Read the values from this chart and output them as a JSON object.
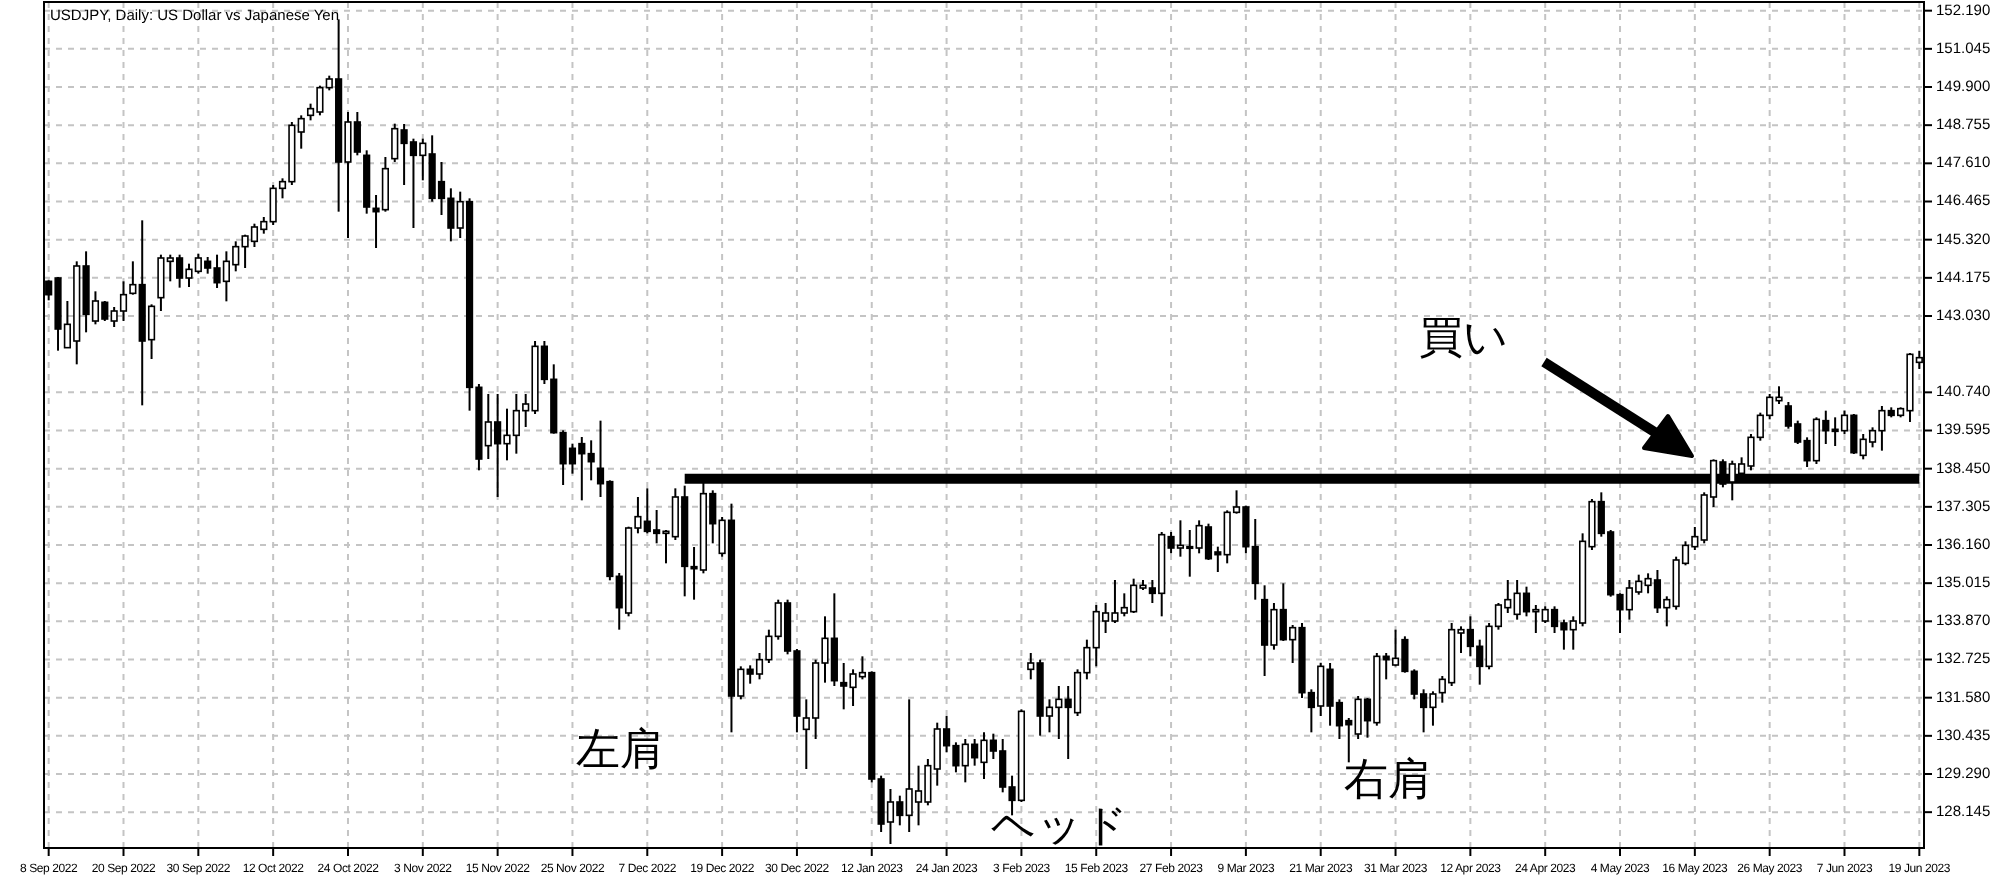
{
  "chart_data": {
    "type": "candlestick",
    "title": "USDJPY, Daily:  US Dollar vs Japanese Yen",
    "categories": [
      "8 Sep 2022",
      null,
      null,
      null,
      null,
      null,
      null,
      null,
      "20 Sep 2022",
      null,
      null,
      null,
      null,
      null,
      null,
      null,
      "30 Sep 2022",
      null,
      null,
      null,
      null,
      null,
      null,
      null,
      "12 Oct 2022",
      null,
      null,
      null,
      null,
      null,
      null,
      null,
      "24 Oct 2022",
      null,
      null,
      null,
      null,
      null,
      null,
      null,
      "3 Nov 2022",
      null,
      null,
      null,
      null,
      null,
      null,
      null,
      "15 Nov 2022",
      null,
      null,
      null,
      null,
      null,
      null,
      null,
      "25 Nov 2022",
      null,
      null,
      null,
      null,
      null,
      null,
      null,
      "7 Dec 2022",
      null,
      null,
      null,
      null,
      null,
      null,
      null,
      "19 Dec 2022",
      null,
      null,
      null,
      null,
      null,
      null,
      null,
      "30 Dec 2022",
      null,
      null,
      null,
      null,
      null,
      null,
      null,
      "12 Jan 2023",
      null,
      null,
      null,
      null,
      null,
      null,
      null,
      "24 Jan 2023",
      null,
      null,
      null,
      null,
      null,
      null,
      null,
      "3 Feb 2023",
      null,
      null,
      null,
      null,
      null,
      null,
      null,
      "15 Feb 2023",
      null,
      null,
      null,
      null,
      null,
      null,
      null,
      "27 Feb 2023",
      null,
      null,
      null,
      null,
      null,
      null,
      null,
      "9 Mar 2023",
      null,
      null,
      null,
      null,
      null,
      null,
      null,
      "21 Mar 2023",
      null,
      null,
      null,
      null,
      null,
      null,
      null,
      "31 Mar 2023",
      null,
      null,
      null,
      null,
      null,
      null,
      null,
      "12 Apr 2023",
      null,
      null,
      null,
      null,
      null,
      null,
      null,
      "24 Apr 2023",
      null,
      null,
      null,
      null,
      null,
      null,
      null,
      "4 May 2023",
      null,
      null,
      null,
      null,
      null,
      null,
      null,
      "16 May 2023",
      null,
      null,
      null,
      null,
      null,
      null,
      null,
      "26 May 2023",
      null,
      null,
      null,
      null,
      null,
      null,
      null,
      "7 Jun 2023",
      null,
      null,
      null,
      null,
      null,
      null,
      null,
      "19 Jun 2023"
    ],
    "ohlc": [
      [
        144.07,
        144.1,
        143.5,
        143.67
      ],
      [
        144.17,
        144.2,
        141.99,
        142.64
      ],
      [
        142.08,
        143.48,
        142.08,
        142.78
      ],
      [
        142.28,
        144.67,
        141.58,
        144.53
      ],
      [
        144.53,
        144.97,
        142.54,
        143.08
      ],
      [
        142.88,
        143.77,
        142.78,
        143.48
      ],
      [
        143.44,
        143.48,
        142.88,
        142.94
      ],
      [
        142.88,
        143.3,
        142.7,
        143.18
      ],
      [
        143.18,
        144.07,
        142.88,
        143.67
      ],
      [
        143.71,
        144.67,
        143.67,
        143.97
      ],
      [
        143.97,
        145.9,
        140.35,
        142.28
      ],
      [
        142.32,
        143.38,
        141.74,
        143.32
      ],
      [
        143.58,
        144.87,
        143.18,
        144.77
      ],
      [
        144.67,
        144.87,
        144.07,
        144.77
      ],
      [
        144.77,
        144.87,
        143.88,
        144.17
      ],
      [
        144.17,
        144.6,
        143.9,
        144.43
      ],
      [
        144.37,
        144.9,
        144.3,
        144.77
      ],
      [
        144.67,
        144.8,
        144.3,
        144.47
      ],
      [
        144.47,
        144.87,
        143.87,
        144.03
      ],
      [
        144.07,
        144.97,
        143.47,
        144.67
      ],
      [
        144.57,
        145.27,
        144.37,
        145.11
      ],
      [
        145.11,
        145.47,
        144.47,
        145.43
      ],
      [
        145.27,
        145.8,
        145.1,
        145.7
      ],
      [
        145.63,
        146.0,
        145.5,
        145.86
      ],
      [
        145.86,
        146.96,
        145.76,
        146.86
      ],
      [
        146.86,
        147.16,
        146.56,
        147.06
      ],
      [
        147.06,
        148.85,
        146.96,
        148.75
      ],
      [
        148.55,
        149.05,
        148.05,
        148.95
      ],
      [
        149.05,
        149.4,
        148.9,
        149.25
      ],
      [
        149.15,
        149.94,
        149.05,
        149.88
      ],
      [
        149.88,
        150.24,
        149.8,
        150.14
      ],
      [
        150.14,
        151.93,
        146.16,
        147.65
      ],
      [
        147.65,
        149.15,
        145.37,
        148.85
      ],
      [
        148.85,
        149.15,
        147.85,
        147.95
      ],
      [
        147.85,
        148.0,
        146.1,
        146.3
      ],
      [
        146.26,
        146.66,
        145.07,
        146.16
      ],
      [
        146.22,
        147.8,
        146.16,
        147.45
      ],
      [
        147.75,
        148.8,
        147.65,
        148.65
      ],
      [
        148.61,
        148.79,
        146.96,
        148.21
      ],
      [
        148.25,
        148.35,
        145.67,
        147.85
      ],
      [
        147.85,
        148.35,
        147.1,
        148.21
      ],
      [
        147.89,
        148.45,
        146.46,
        146.56
      ],
      [
        147.06,
        147.65,
        146.06,
        146.56
      ],
      [
        146.56,
        146.86,
        145.27,
        145.67
      ],
      [
        145.67,
        146.76,
        145.37,
        146.46
      ],
      [
        146.46,
        146.56,
        140.19,
        140.89
      ],
      [
        140.89,
        140.99,
        138.4,
        138.74
      ],
      [
        139.14,
        140.69,
        138.74,
        139.85
      ],
      [
        139.85,
        140.69,
        137.6,
        139.2
      ],
      [
        139.2,
        140.25,
        138.7,
        139.45
      ],
      [
        139.45,
        140.69,
        138.9,
        140.19
      ],
      [
        140.19,
        140.69,
        139.7,
        140.39
      ],
      [
        140.19,
        142.28,
        140.09,
        142.12
      ],
      [
        142.12,
        142.28,
        140.99,
        141.13
      ],
      [
        141.13,
        141.58,
        139.5,
        139.53
      ],
      [
        139.53,
        139.6,
        137.96,
        138.6
      ],
      [
        139.06,
        139.2,
        138.3,
        138.6
      ],
      [
        139.2,
        139.4,
        137.5,
        138.9
      ],
      [
        138.9,
        139.3,
        138.1,
        138.66
      ],
      [
        138.46,
        139.89,
        137.6,
        138.0
      ],
      [
        138.06,
        138.1,
        135.1,
        135.22
      ],
      [
        135.22,
        135.32,
        133.62,
        134.28
      ],
      [
        134.12,
        136.71,
        134.02,
        136.67
      ],
      [
        136.67,
        137.6,
        136.51,
        137.01
      ],
      [
        136.87,
        137.86,
        136.51,
        136.57
      ],
      [
        136.61,
        137.21,
        136.21,
        136.51
      ],
      [
        136.51,
        136.61,
        135.61,
        136.57
      ],
      [
        136.41,
        137.86,
        136.31,
        137.6
      ],
      [
        137.6,
        137.94,
        134.62,
        135.52
      ],
      [
        135.51,
        136.1,
        134.52,
        135.45
      ],
      [
        135.41,
        138.1,
        135.31,
        137.7
      ],
      [
        137.7,
        137.8,
        136.21,
        136.8
      ],
      [
        135.91,
        137.0,
        135.81,
        136.9
      ],
      [
        136.9,
        137.4,
        130.54,
        131.63
      ],
      [
        131.63,
        132.52,
        131.53,
        132.43
      ],
      [
        132.43,
        132.55,
        132.0,
        132.29
      ],
      [
        132.29,
        132.92,
        132.13,
        132.72
      ],
      [
        132.72,
        133.62,
        132.62,
        133.42
      ],
      [
        133.42,
        134.52,
        133.32,
        134.42
      ],
      [
        134.42,
        134.52,
        132.88,
        132.98
      ],
      [
        132.98,
        133.04,
        130.54,
        131.03
      ],
      [
        130.63,
        131.53,
        129.44,
        130.97
      ],
      [
        130.97,
        132.72,
        130.34,
        132.62
      ],
      [
        132.62,
        134.02,
        132.03,
        133.36
      ],
      [
        133.36,
        134.71,
        131.93,
        132.09
      ],
      [
        132.03,
        132.62,
        131.23,
        131.93
      ],
      [
        131.89,
        132.43,
        131.33,
        132.29
      ],
      [
        132.21,
        132.82,
        132.13,
        132.33
      ],
      [
        132.33,
        132.37,
        129.04,
        129.14
      ],
      [
        129.14,
        129.24,
        127.55,
        127.79
      ],
      [
        127.85,
        128.84,
        127.19,
        128.45
      ],
      [
        128.45,
        128.64,
        127.75,
        128.05
      ],
      [
        128.05,
        131.53,
        127.55,
        128.84
      ],
      [
        128.45,
        129.54,
        127.75,
        128.78
      ],
      [
        128.45,
        129.74,
        128.35,
        129.54
      ],
      [
        129.44,
        130.83,
        128.94,
        130.64
      ],
      [
        130.64,
        131.03,
        129.94,
        130.14
      ],
      [
        130.14,
        130.24,
        129.34,
        129.54
      ],
      [
        129.54,
        130.34,
        129.04,
        130.18
      ],
      [
        130.18,
        130.34,
        129.54,
        129.78
      ],
      [
        129.64,
        130.54,
        129.14,
        130.3
      ],
      [
        130.3,
        130.5,
        129.74,
        129.98
      ],
      [
        129.98,
        130.34,
        128.74,
        128.9
      ],
      [
        128.9,
        129.24,
        128.05,
        128.5
      ],
      [
        128.5,
        131.23,
        128.45,
        131.17
      ],
      [
        132.43,
        132.92,
        132.13,
        132.62
      ],
      [
        132.62,
        132.72,
        130.44,
        131.03
      ],
      [
        131.03,
        131.53,
        130.54,
        131.29
      ],
      [
        131.29,
        131.93,
        130.34,
        131.53
      ],
      [
        131.53,
        131.93,
        129.74,
        131.29
      ],
      [
        131.13,
        132.43,
        131.03,
        132.33
      ],
      [
        132.33,
        133.32,
        132.13,
        133.08
      ],
      [
        133.08,
        134.36,
        132.52,
        134.16
      ],
      [
        133.88,
        134.42,
        133.52,
        134.12
      ],
      [
        133.88,
        135.11,
        133.82,
        134.12
      ],
      [
        134.12,
        134.71,
        134.02,
        134.28
      ],
      [
        134.16,
        135.15,
        134.12,
        134.95
      ],
      [
        134.87,
        135.11,
        134.81,
        134.95
      ],
      [
        134.87,
        135.11,
        134.42,
        134.71
      ],
      [
        134.71,
        136.55,
        134.02,
        136.47
      ],
      [
        136.41,
        136.55,
        135.91,
        136.07
      ],
      [
        136.07,
        136.9,
        135.81,
        136.15
      ],
      [
        136.07,
        136.61,
        135.21,
        136.11
      ],
      [
        136.07,
        136.9,
        135.91,
        136.74
      ],
      [
        136.7,
        136.8,
        135.71,
        135.75
      ],
      [
        135.95,
        136.11,
        135.35,
        135.87
      ],
      [
        135.87,
        137.2,
        135.61,
        137.14
      ],
      [
        137.14,
        137.8,
        137.1,
        137.3
      ],
      [
        137.3,
        137.34,
        135.91,
        136.11
      ],
      [
        136.11,
        136.94,
        134.52,
        135.01
      ],
      [
        134.52,
        134.95,
        132.23,
        133.16
      ],
      [
        133.16,
        134.42,
        133.02,
        134.22
      ],
      [
        134.22,
        135.01,
        133.28,
        133.32
      ],
      [
        133.32,
        133.76,
        132.62,
        133.68
      ],
      [
        133.68,
        133.82,
        131.57,
        131.73
      ],
      [
        131.73,
        131.83,
        130.54,
        131.29
      ],
      [
        131.33,
        132.62,
        131.03,
        132.52
      ],
      [
        132.43,
        132.62,
        130.74,
        131.33
      ],
      [
        131.43,
        131.53,
        130.34,
        130.74
      ],
      [
        130.89,
        130.97,
        129.64,
        130.77
      ],
      [
        130.49,
        131.63,
        130.34,
        131.53
      ],
      [
        131.53,
        131.57,
        130.38,
        130.89
      ],
      [
        130.83,
        132.92,
        130.74,
        132.82
      ],
      [
        132.82,
        132.92,
        132.13,
        132.72
      ],
      [
        132.56,
        133.62,
        132.52,
        132.76
      ],
      [
        133.32,
        133.42,
        132.33,
        132.37
      ],
      [
        132.37,
        132.43,
        131.53,
        131.69
      ],
      [
        131.69,
        131.83,
        130.54,
        131.29
      ],
      [
        131.29,
        131.77,
        130.74,
        131.69
      ],
      [
        131.73,
        132.23,
        131.43,
        132.13
      ],
      [
        132.03,
        133.82,
        131.93,
        133.62
      ],
      [
        133.52,
        133.72,
        132.92,
        133.62
      ],
      [
        133.62,
        134.02,
        132.82,
        133.12
      ],
      [
        133.12,
        133.32,
        131.97,
        132.52
      ],
      [
        132.52,
        133.82,
        132.43,
        133.72
      ],
      [
        133.72,
        134.42,
        133.62,
        134.36
      ],
      [
        134.28,
        135.11,
        134.12,
        134.52
      ],
      [
        134.08,
        135.11,
        133.92,
        134.71
      ],
      [
        134.71,
        134.91,
        134.02,
        134.16
      ],
      [
        134.16,
        134.36,
        133.52,
        134.22
      ],
      [
        133.88,
        134.32,
        133.82,
        134.22
      ],
      [
        134.22,
        134.32,
        133.52,
        133.72
      ],
      [
        133.82,
        133.92,
        133.02,
        133.62
      ],
      [
        133.62,
        134.02,
        133.02,
        133.88
      ],
      [
        133.82,
        136.51,
        133.72,
        136.27
      ],
      [
        136.11,
        137.54,
        136.01,
        137.46
      ],
      [
        137.46,
        137.74,
        136.41,
        136.51
      ],
      [
        136.55,
        136.61,
        134.61,
        134.67
      ],
      [
        134.67,
        134.71,
        133.52,
        134.22
      ],
      [
        134.22,
        135.11,
        133.92,
        134.87
      ],
      [
        134.75,
        135.27,
        134.67,
        135.07
      ],
      [
        134.95,
        135.31,
        134.71,
        135.15
      ],
      [
        135.11,
        135.41,
        134.12,
        134.28
      ],
      [
        134.28,
        134.62,
        133.72,
        134.52
      ],
      [
        134.32,
        135.81,
        134.22,
        135.71
      ],
      [
        135.61,
        136.27,
        135.55,
        136.15
      ],
      [
        136.11,
        136.7,
        136.01,
        136.41
      ],
      [
        136.31,
        137.74,
        136.21,
        137.66
      ],
      [
        137.6,
        138.73,
        137.3,
        138.69
      ],
      [
        138.65,
        138.73,
        137.89,
        137.99
      ],
      [
        138.05,
        138.69,
        137.5,
        138.59
      ],
      [
        138.31,
        138.79,
        138.13,
        138.59
      ],
      [
        138.53,
        139.49,
        138.4,
        139.39
      ],
      [
        139.39,
        140.13,
        139.29,
        140.05
      ],
      [
        140.05,
        140.69,
        139.93,
        140.59
      ],
      [
        140.49,
        140.92,
        140.39,
        140.59
      ],
      [
        140.33,
        140.45,
        139.65,
        139.73
      ],
      [
        139.79,
        139.89,
        139.19,
        139.25
      ],
      [
        139.29,
        139.39,
        138.5,
        138.69
      ],
      [
        138.69,
        139.99,
        138.59,
        139.93
      ],
      [
        139.89,
        140.19,
        139.19,
        139.59
      ],
      [
        139.63,
        139.99,
        139.13,
        139.57
      ],
      [
        139.59,
        140.19,
        139.49,
        140.05
      ],
      [
        140.05,
        140.09,
        138.89,
        138.93
      ],
      [
        138.85,
        139.49,
        138.73,
        139.33
      ],
      [
        139.25,
        139.69,
        139.09,
        139.59
      ],
      [
        139.59,
        140.33,
        138.99,
        140.19
      ],
      [
        140.19,
        140.29,
        139.99,
        140.05
      ],
      [
        140.05,
        140.29,
        139.99,
        140.25
      ],
      [
        140.19,
        141.92,
        139.85,
        141.88
      ],
      [
        141.64,
        141.98,
        141.44,
        141.78
      ]
    ],
    "series": [
      {
        "type": "line",
        "color": "#000000",
        "values": [
          null,
          null,
          null,
          null,
          null,
          null,
          null,
          null,
          null,
          null,
          null,
          null,
          null,
          null,
          null,
          null,
          null,
          null,
          null,
          null,
          null,
          null,
          null,
          null,
          null,
          null,
          null,
          null,
          null,
          null,
          null,
          null,
          null,
          null,
          null,
          null,
          null,
          null,
          null,
          null,
          null,
          null,
          null,
          null,
          null,
          null,
          null,
          null,
          null,
          null,
          null,
          null,
          null,
          null,
          null,
          null,
          null,
          null,
          null,
          null,
          null,
          null,
          null,
          null,
          null,
          null,
          null,
          null,
          138.15,
          138.15,
          138.15,
          138.15,
          138.15,
          138.15,
          138.15,
          138.15,
          138.15,
          138.15,
          138.15,
          138.15,
          138.15,
          138.15,
          138.15,
          138.15,
          138.15,
          138.15,
          138.15,
          138.15,
          138.15,
          138.15,
          138.15,
          138.15,
          138.15,
          138.15,
          138.15,
          138.15,
          138.15,
          138.15,
          138.15,
          138.15,
          138.15,
          138.15,
          138.15,
          138.15,
          138.15,
          138.15,
          138.15,
          138.15,
          138.15,
          138.15,
          138.15,
          138.15,
          138.15,
          138.15,
          138.15,
          138.15,
          138.15,
          138.15,
          138.15,
          138.15,
          138.15,
          138.15,
          138.15,
          138.15,
          138.15,
          138.15,
          138.15,
          138.15,
          138.15,
          138.15,
          138.15,
          138.15,
          138.15,
          138.15,
          138.15,
          138.15,
          138.15,
          138.15,
          138.15,
          138.15,
          138.15,
          138.15,
          138.15,
          138.15,
          138.15,
          138.15,
          138.15,
          138.15,
          138.15,
          138.15,
          138.15,
          138.15,
          138.15,
          138.15,
          138.15,
          138.15,
          138.15,
          138.15,
          138.15,
          138.15,
          138.15,
          138.15,
          138.15,
          138.15,
          138.15,
          138.15,
          138.15,
          138.15,
          138.15,
          138.15,
          138.15,
          138.15,
          138.15,
          138.15,
          138.15,
          138.15,
          138.15,
          138.15,
          138.15,
          138.15,
          138.15,
          138.15,
          138.15,
          138.15,
          138.15,
          138.15,
          138.15,
          138.15,
          138.15,
          138.15,
          138.15,
          138.15,
          138.15,
          138.15,
          138.15,
          138.15,
          138.15,
          138.15,
          138.15,
          138.15,
          138.15
        ]
      }
    ],
    "ylim": [
      127.07,
      152.45
    ],
    "yticks": [
      {
        "value": 152.19,
        "label": "152.190"
      },
      {
        "value": 151.045,
        "label": "151.045"
      },
      {
        "value": 149.9,
        "label": "149.900"
      },
      {
        "value": 148.755,
        "label": "148.755"
      },
      {
        "value": 147.61,
        "label": "147.610"
      },
      {
        "value": 146.465,
        "label": "146.465"
      },
      {
        "value": 145.32,
        "label": "145.320"
      },
      {
        "value": 144.175,
        "label": "144.175"
      },
      {
        "value": 143.03,
        "label": "143.030"
      },
      {
        "value": 140.74,
        "label": "140.740"
      },
      {
        "value": 139.595,
        "label": "139.595"
      },
      {
        "value": 138.45,
        "label": "138.450"
      },
      {
        "value": 137.305,
        "label": "137.305"
      },
      {
        "value": 136.16,
        "label": "136.160"
      },
      {
        "value": 135.015,
        "label": "135.015"
      },
      {
        "value": 133.87,
        "label": "133.870"
      },
      {
        "value": 132.725,
        "label": "132.725"
      },
      {
        "value": 131.58,
        "label": "131.580"
      },
      {
        "value": 130.435,
        "label": "130.435"
      },
      {
        "value": 129.29,
        "label": "129.290"
      },
      {
        "value": 128.145,
        "label": "128.145"
      }
    ],
    "grid": true,
    "annotations": [
      "左肩",
      "ヘッド",
      "右肩",
      "買い"
    ]
  }
}
